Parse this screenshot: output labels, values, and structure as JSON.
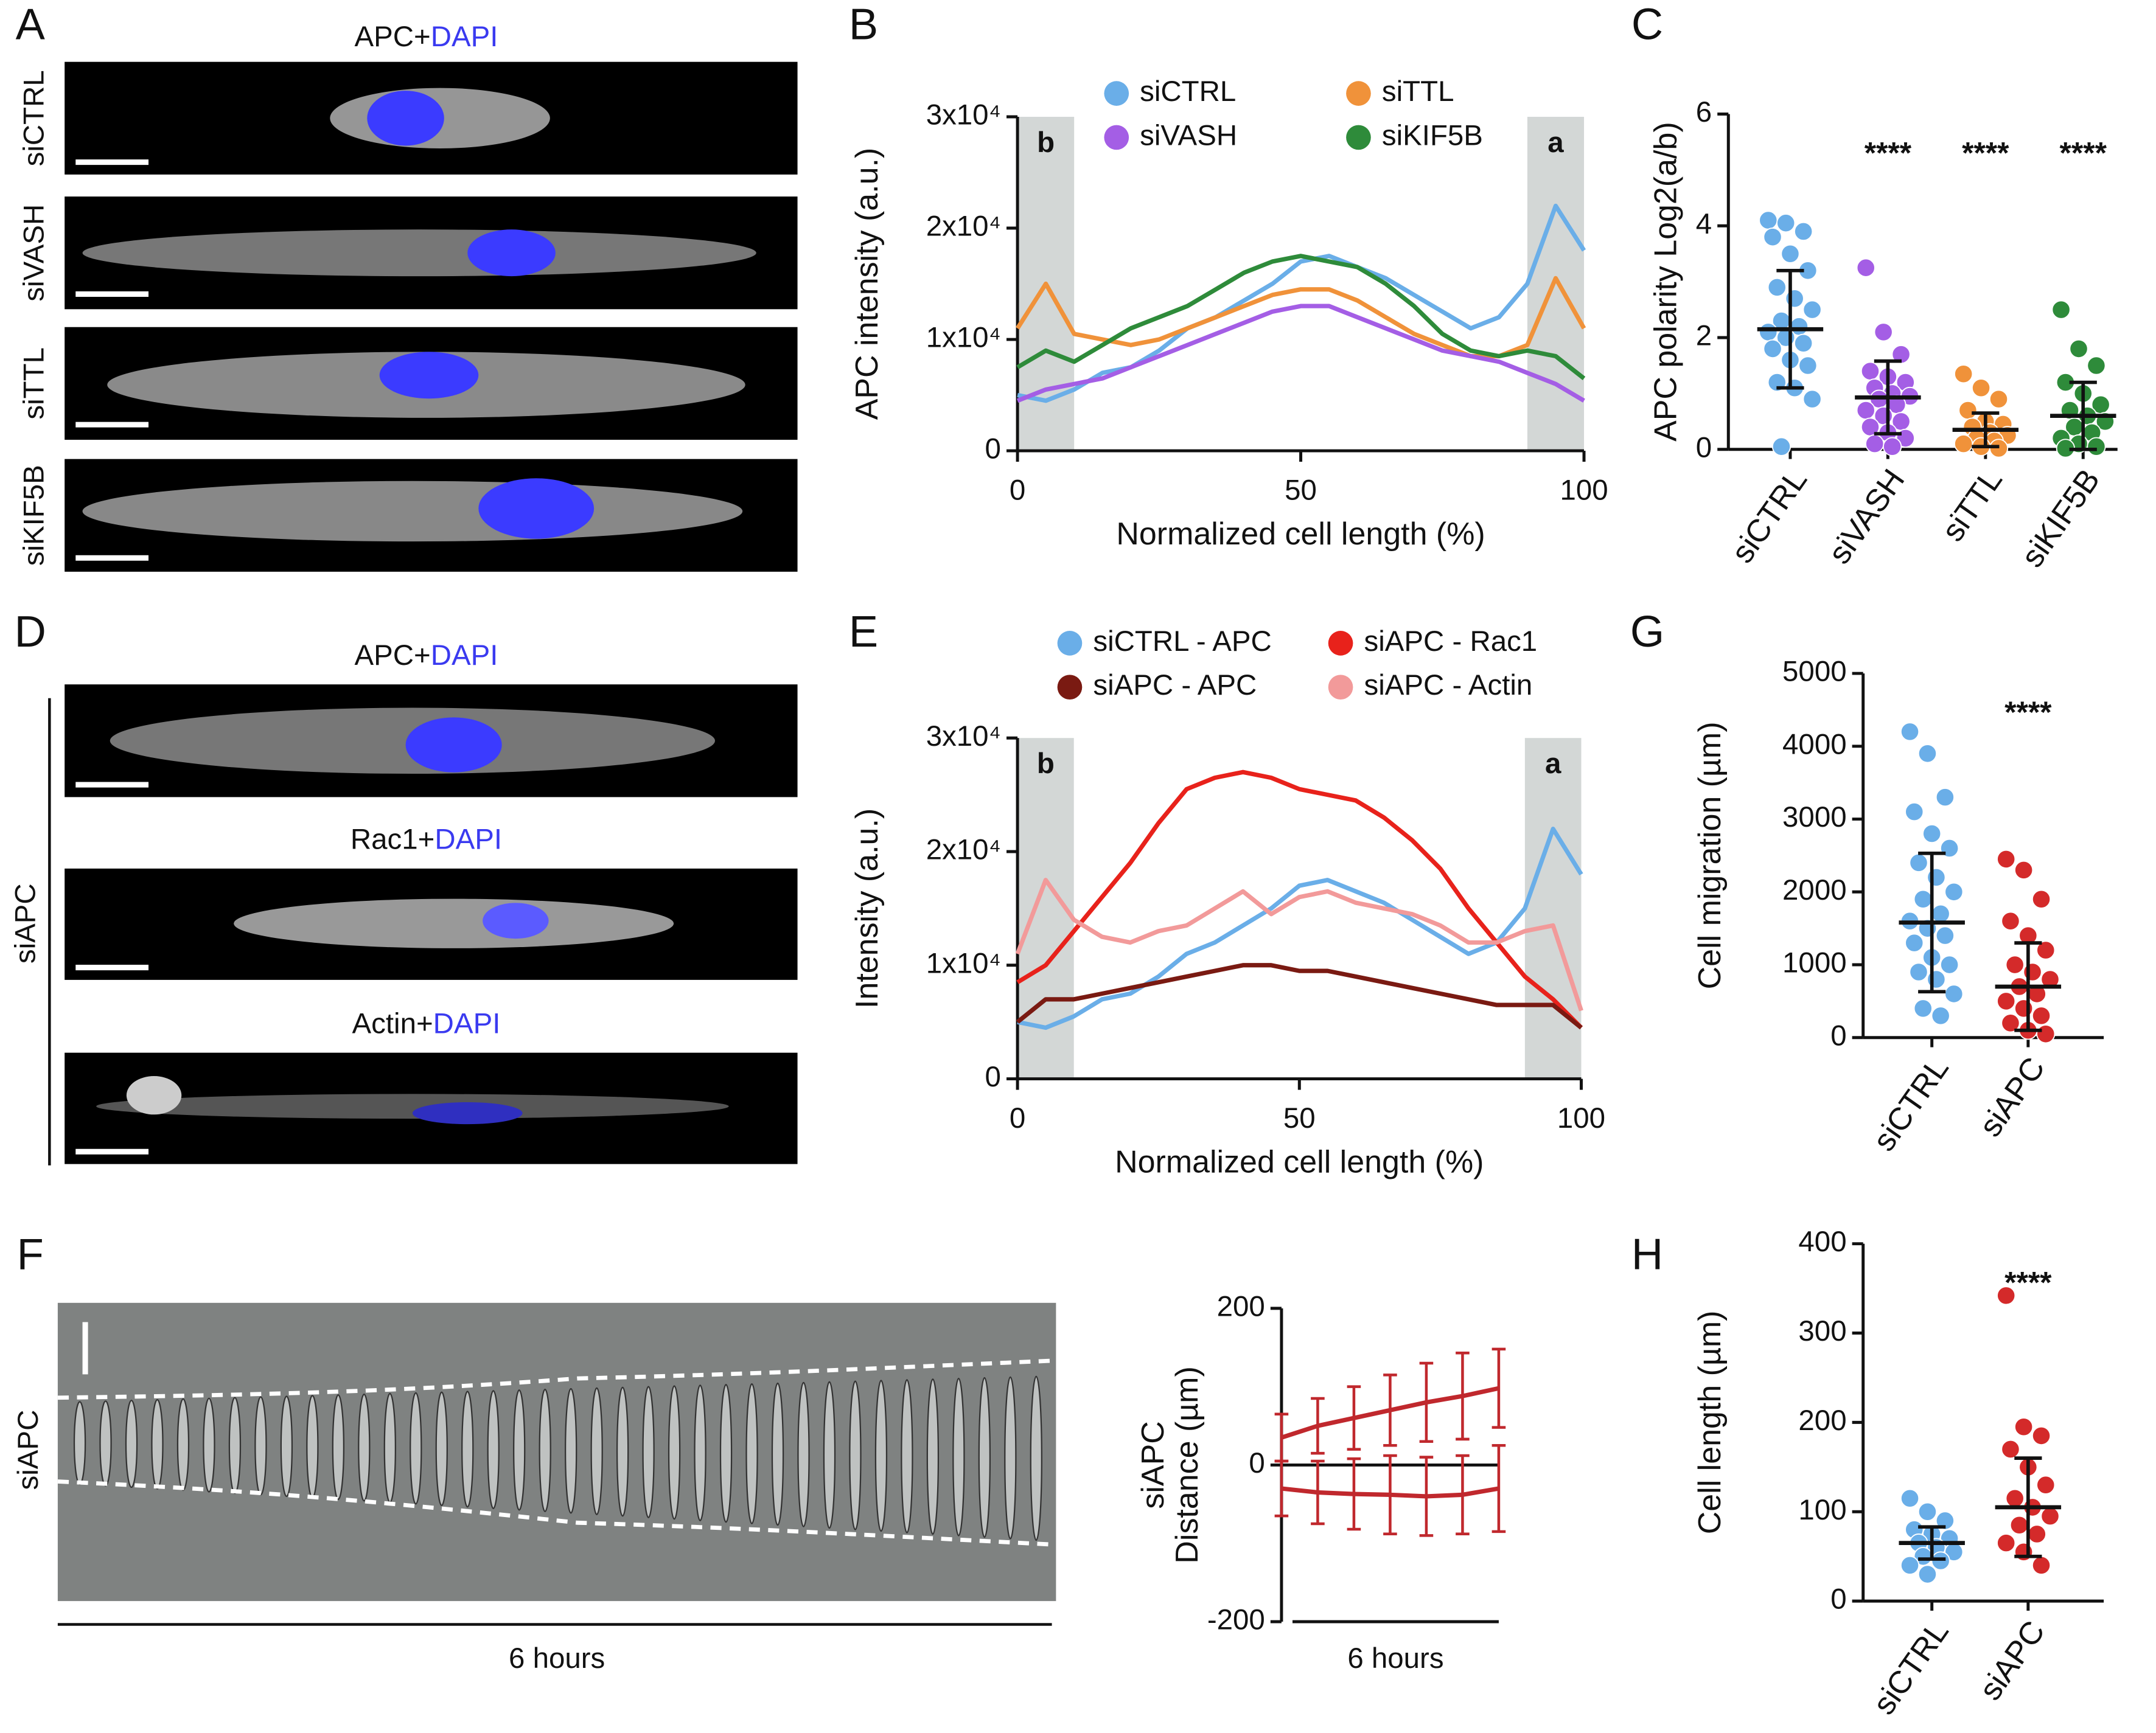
{
  "panel_labels": [
    "A",
    "B",
    "C",
    "D",
    "E",
    "F",
    "G",
    "H"
  ],
  "image_panels": {
    "A": {
      "title": {
        "stain": "APC+",
        "dapi": "DAPI"
      },
      "rows": [
        "siCTRL",
        "siVASH",
        "siTTL",
        "siKIF5B"
      ]
    },
    "D": {
      "group": "siAPC",
      "titles": [
        {
          "stain": "APC+",
          "dapi": "DAPI"
        },
        {
          "stain": "Rac1+",
          "dapi": "DAPI"
        },
        {
          "stain": "Actin+",
          "dapi": "DAPI"
        }
      ]
    },
    "F": {
      "row": "siAPC",
      "duration": "6 hours"
    }
  },
  "chart_data": [
    {
      "type": "line",
      "x": [
        0,
        5,
        10,
        15,
        20,
        25,
        30,
        35,
        40,
        45,
        50,
        55,
        60,
        65,
        70,
        75,
        80,
        85,
        90,
        95,
        100
      ],
      "xlim": [
        0,
        100
      ],
      "xticks": [
        0,
        50,
        100
      ],
      "ylim": [
        0,
        30000
      ],
      "yticks": [
        0,
        {
          "value": 10000,
          "label": "1x10⁴"
        },
        {
          "value": 20000,
          "label": "2x10⁴"
        },
        {
          "value": 30000,
          "label": "3x10⁴"
        }
      ],
      "x_label": "Normalized cell length (%)",
      "y_label": "APC intensity (a.u.)",
      "shaded_regions": [
        {
          "range": [
            0,
            10
          ],
          "label": "b"
        },
        {
          "range": [
            90,
            100
          ],
          "label": "a"
        }
      ],
      "legend": "top",
      "series": [
        {
          "name": "siCTRL",
          "color": "#6aaee8",
          "values": [
            5000,
            4500,
            5500,
            7000,
            7500,
            9000,
            11000,
            12000,
            13500,
            15000,
            17000,
            17500,
            16500,
            15500,
            14000,
            12500,
            11000,
            12000,
            15000,
            22000,
            18000
          ]
        },
        {
          "name": "siTTL",
          "color": "#f0923a",
          "values": [
            11000,
            15000,
            10500,
            10000,
            9500,
            10000,
            11000,
            12000,
            13000,
            14000,
            14500,
            14500,
            13500,
            12000,
            10500,
            9500,
            8500,
            8500,
            9500,
            15500,
            11000
          ]
        },
        {
          "name": "siVASH",
          "color": "#a45ee5",
          "values": [
            4500,
            5500,
            6000,
            6500,
            7500,
            8500,
            9500,
            10500,
            11500,
            12500,
            13000,
            13000,
            12000,
            11000,
            10000,
            9000,
            8500,
            8000,
            7000,
            6000,
            4500
          ]
        },
        {
          "name": "siKIF5B",
          "color": "#2e8b3a",
          "values": [
            7500,
            9000,
            8000,
            9500,
            11000,
            12000,
            13000,
            14500,
            16000,
            17000,
            17500,
            17000,
            16500,
            15000,
            13000,
            10500,
            9000,
            8500,
            9000,
            8500,
            6500
          ]
        }
      ]
    },
    {
      "type": "dotplot",
      "categories": [
        "siCTRL",
        "siVASH",
        "siTTL",
        "siKIF5B"
      ],
      "colors": [
        "#6aaee8",
        "#a45ee5",
        "#f0923a",
        "#2e8b3a"
      ],
      "ylim": [
        0,
        6
      ],
      "yticks": [
        0,
        2,
        4,
        6
      ],
      "y_label": "APC polarity Log2(a/b)",
      "points": [
        [
          4.1,
          4.05,
          3.9,
          3.8,
          3.5,
          3.2,
          2.9,
          2.7,
          2.5,
          2.3,
          2.2,
          2.1,
          2.0,
          1.9,
          1.8,
          1.6,
          1.5,
          1.2,
          1.1,
          0.9,
          0.05
        ],
        [
          3.25,
          2.1,
          1.7,
          1.4,
          1.3,
          1.2,
          1.1,
          1.0,
          0.95,
          0.9,
          0.8,
          0.7,
          0.6,
          0.5,
          0.4,
          0.3,
          0.2,
          0.1,
          0.05
        ],
        [
          1.35,
          1.1,
          0.9,
          0.7,
          0.5,
          0.45,
          0.4,
          0.3,
          0.25,
          0.2,
          0.15,
          0.1,
          0.05,
          0.02
        ],
        [
          2.5,
          1.8,
          1.5,
          1.2,
          1.0,
          0.8,
          0.7,
          0.6,
          0.5,
          0.4,
          0.3,
          0.2,
          0.1,
          0.05,
          0.02
        ]
      ],
      "means": [
        2.15,
        0.93,
        0.35,
        0.6
      ],
      "sds": [
        1.05,
        0.65,
        0.3,
        0.6
      ],
      "significance": [
        null,
        "****",
        "****",
        "****"
      ]
    },
    {
      "type": "line",
      "x": [
        0,
        5,
        10,
        15,
        20,
        25,
        30,
        35,
        40,
        45,
        50,
        55,
        60,
        65,
        70,
        75,
        80,
        85,
        90,
        95,
        100
      ],
      "xlim": [
        0,
        100
      ],
      "xticks": [
        0,
        50,
        100
      ],
      "ylim": [
        0,
        30000
      ],
      "yticks": [
        0,
        {
          "value": 10000,
          "label": "1x10⁴"
        },
        {
          "value": 20000,
          "label": "2x10⁴"
        },
        {
          "value": 30000,
          "label": "3x10⁴"
        }
      ],
      "x_label": "Normalized cell length (%)",
      "y_label": "Intensity (a.u.)",
      "shaded_regions": [
        {
          "range": [
            0,
            10
          ],
          "label": "b"
        },
        {
          "range": [
            90,
            100
          ],
          "label": "a"
        }
      ],
      "legend": "top",
      "series": [
        {
          "name": "siCTRL - APC",
          "color": "#6aaee8",
          "values": [
            5000,
            4500,
            5500,
            7000,
            7500,
            9000,
            11000,
            12000,
            13500,
            15000,
            17000,
            17500,
            16500,
            15500,
            14000,
            12500,
            11000,
            12000,
            15000,
            22000,
            18000
          ]
        },
        {
          "name": "siAPC - Rac1",
          "color": "#e8221b",
          "values": [
            8500,
            10000,
            13000,
            16000,
            19000,
            22500,
            25500,
            26500,
            27000,
            26500,
            25500,
            25000,
            24500,
            23000,
            21000,
            18500,
            15000,
            12000,
            9000,
            7000,
            4500
          ]
        },
        {
          "name": "siAPC - APC",
          "color": "#7a1a12",
          "values": [
            5000,
            7000,
            7000,
            7500,
            8000,
            8500,
            9000,
            9500,
            10000,
            10000,
            9500,
            9500,
            9000,
            8500,
            8000,
            7500,
            7000,
            6500,
            6500,
            6500,
            4500
          ]
        },
        {
          "name": "siAPC - Actin",
          "color": "#f29a9a",
          "values": [
            11000,
            17500,
            14000,
            12500,
            12000,
            13000,
            13500,
            15000,
            16500,
            14500,
            16000,
            16500,
            15500,
            15000,
            14500,
            13500,
            12000,
            12000,
            13000,
            13500,
            6000
          ]
        }
      ]
    },
    {
      "type": "dotplot",
      "categories": [
        "siCTRL",
        "siAPC"
      ],
      "colors": [
        "#6aaee8",
        "#d42a2a"
      ],
      "ylim": [
        0,
        5000
      ],
      "yticks": [
        0,
        1000,
        2000,
        3000,
        4000,
        5000
      ],
      "y_label": "Cell migration (µm)",
      "points": [
        [
          4200,
          3900,
          3300,
          3100,
          2800,
          2600,
          2400,
          2200,
          2000,
          1900,
          1700,
          1600,
          1500,
          1400,
          1300,
          1100,
          1000,
          900,
          800,
          600,
          400,
          300
        ],
        [
          2450,
          2300,
          1900,
          1600,
          1400,
          1200,
          1000,
          900,
          800,
          700,
          600,
          500,
          400,
          300,
          200,
          100,
          50
        ]
      ],
      "means": [
        1580,
        700
      ],
      "sds": [
        950,
        600
      ],
      "significance": [
        null,
        "****"
      ]
    },
    {
      "type": "dotplot",
      "categories": [
        "siCTRL",
        "siAPC"
      ],
      "colors": [
        "#6aaee8",
        "#d42a2a"
      ],
      "ylim": [
        0,
        400
      ],
      "yticks": [
        0,
        100,
        200,
        300,
        400
      ],
      "y_label": "Cell length (µm)",
      "points": [
        [
          115,
          100,
          90,
          80,
          75,
          70,
          65,
          60,
          55,
          50,
          45,
          40,
          30
        ],
        [
          342,
          195,
          185,
          170,
          150,
          130,
          115,
          105,
          95,
          85,
          75,
          65,
          55,
          40
        ]
      ],
      "means": [
        65,
        105
      ],
      "sds": [
        18,
        55
      ],
      "significance": [
        null,
        "****"
      ]
    },
    {
      "type": "line",
      "categories": [
        null,
        null,
        null,
        null,
        null,
        null,
        null
      ],
      "ylim": [
        -200,
        200
      ],
      "yticks": [
        -200,
        0,
        200
      ],
      "y_label": "Distance (µm)",
      "y_group": "siAPC",
      "x_label": "6 hours",
      "series": [
        {
          "color": "#c0282d",
          "values": [
            35,
            50,
            60,
            70,
            80,
            88,
            98
          ],
          "errors": [
            30,
            35,
            40,
            45,
            50,
            55,
            50
          ]
        },
        {
          "color": "#c0282d",
          "values": [
            -30,
            -35,
            -37,
            -38,
            -40,
            -38,
            -30
          ],
          "errors": [
            35,
            40,
            45,
            50,
            50,
            50,
            55
          ]
        }
      ]
    }
  ]
}
